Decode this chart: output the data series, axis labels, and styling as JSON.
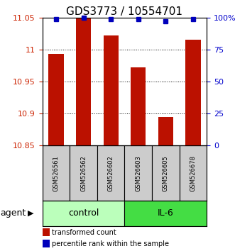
{
  "title": "GDS3773 / 10554701",
  "samples": [
    "GSM526561",
    "GSM526562",
    "GSM526602",
    "GSM526603",
    "GSM526605",
    "GSM526678"
  ],
  "bar_values": [
    10.993,
    11.05,
    11.022,
    10.972,
    10.895,
    11.015
  ],
  "percentile_values": [
    99,
    100,
    99,
    99,
    97,
    99
  ],
  "ylim_left": [
    10.85,
    11.05
  ],
  "ylim_right": [
    0,
    100
  ],
  "yticks_left": [
    10.85,
    10.9,
    10.95,
    11.0,
    11.05
  ],
  "ytick_labels_left": [
    "10.85",
    "10.9",
    "10.95",
    "11",
    "11.05"
  ],
  "yticks_right": [
    0,
    25,
    50,
    75,
    100
  ],
  "ytick_labels_right": [
    "0",
    "25",
    "50",
    "75",
    "100%"
  ],
  "groups": [
    {
      "label": "control",
      "indices": [
        0,
        1,
        2
      ],
      "color": "#bbffbb"
    },
    {
      "label": "IL-6",
      "indices": [
        3,
        4,
        5
      ],
      "color": "#44dd44"
    }
  ],
  "bar_color": "#bb1100",
  "dot_color": "#0000bb",
  "bar_width": 0.55,
  "agent_label": "agent",
  "legend_items": [
    {
      "label": "transformed count",
      "color": "#bb1100"
    },
    {
      "label": "percentile rank within the sample",
      "color": "#0000bb"
    }
  ],
  "title_fontsize": 11,
  "tick_fontsize": 8,
  "sample_fontsize": 6,
  "group_fontsize": 9,
  "legend_fontsize": 7,
  "axis_color_left": "#cc2200",
  "axis_color_right": "#0000cc",
  "sample_box_color": "#cccccc",
  "background_color": "#ffffff"
}
